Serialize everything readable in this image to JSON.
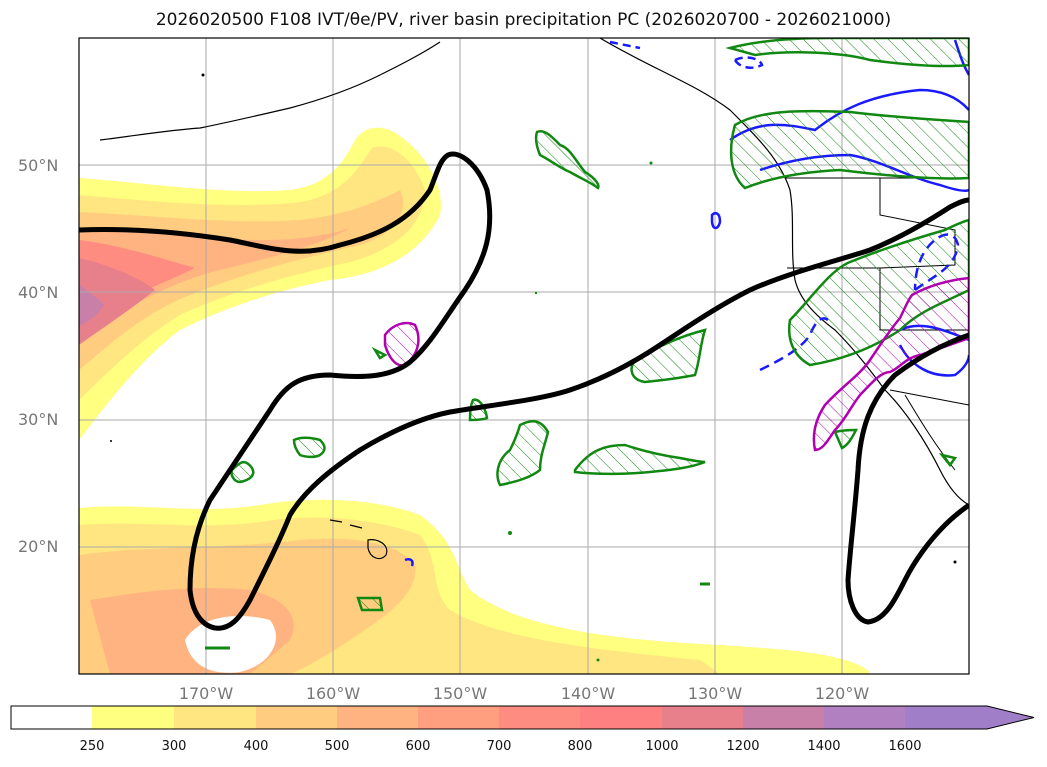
{
  "title": "2026020500 F108 IVT/θe/PV, river basin precipitation PC (2026020700 - 2026021000)",
  "map": {
    "lat_labels": [
      "50°N",
      "40°N",
      "30°N",
      "20°N"
    ],
    "lon_labels": [
      "170°W",
      "160°W",
      "150°W",
      "140°W",
      "130°W",
      "120°W"
    ],
    "colors": {
      "ivt_fill": [
        "#ffffff",
        "#ffff80",
        "#ffe680",
        "#ffcc80",
        "#ffb380",
        "#ff9f80",
        "#ff8c80",
        "#e8808c",
        "#c880a8",
        "#b080c0",
        "#a07ec8"
      ],
      "theta_contour": "#000000",
      "pv_contour_blue": "#1a1aff",
      "precip_green": "#118811",
      "precip_magenta": "#b000b0"
    }
  },
  "colorbar": {
    "labels": [
      "250",
      "300",
      "400",
      "500",
      "600",
      "700",
      "800",
      "1000",
      "1200",
      "1400",
      "1600"
    ]
  }
}
